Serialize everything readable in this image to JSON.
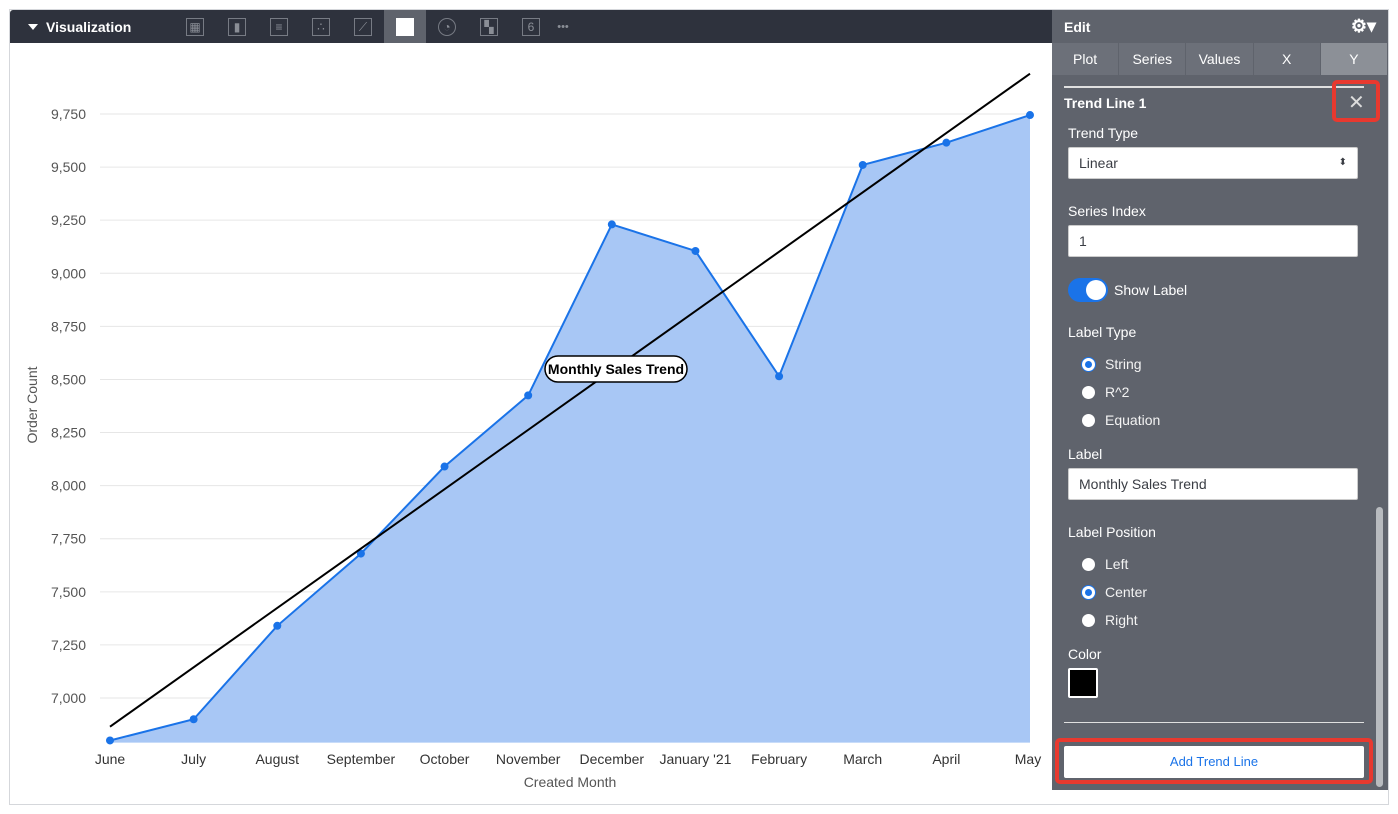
{
  "viz_bar": {
    "title": "Visualization",
    "icons": [
      "table-icon",
      "column-chart-icon",
      "bar-chart-icon",
      "scatter-icon",
      "line-chart-icon",
      "area-chart-icon",
      "pie-chart-icon",
      "map-icon",
      "single-value-icon",
      "more-icon"
    ],
    "single_value_glyph": "6",
    "more_glyph": "•••",
    "active": "area-chart-icon"
  },
  "panel": {
    "title": "Edit",
    "tabs": [
      "Plot",
      "Series",
      "Values",
      "X",
      "Y"
    ],
    "active_tab": "Y",
    "trend_title": "Trend Line 1",
    "trend_type_label": "Trend Type",
    "trend_type_value": "Linear",
    "series_index_label": "Series Index",
    "series_index_value": "1",
    "show_label": "Show Label",
    "show_label_on": true,
    "label_type_label": "Label Type",
    "label_types": [
      "String",
      "R^2",
      "Equation"
    ],
    "label_type_selected": "String",
    "label_label": "Label",
    "label_value": "Monthly Sales Trend",
    "label_position_label": "Label Position",
    "label_positions": [
      "Left",
      "Center",
      "Right"
    ],
    "label_position_selected": "Center",
    "color_label": "Color",
    "color_value": "#000000",
    "add_button": "Add Trend Line"
  },
  "chart_data": {
    "type": "area",
    "xlabel": "Created Month",
    "ylabel": "Order Count",
    "categories": [
      "June",
      "July",
      "August",
      "September",
      "October",
      "November",
      "December",
      "January '21",
      "February",
      "March",
      "April",
      "May"
    ],
    "values": [
      6800,
      6900,
      7340,
      7680,
      8090,
      8425,
      9230,
      9105,
      8515,
      9510,
      9615,
      9745
    ],
    "ylim": [
      6790,
      9950
    ],
    "yticks": [
      7000,
      7250,
      7500,
      7750,
      8000,
      8250,
      8500,
      8750,
      9000,
      9250,
      9500,
      9750
    ],
    "ytick_labels": [
      "7,000",
      "7,250",
      "7,500",
      "7,750",
      "8,000",
      "8,250",
      "8,500",
      "8,750",
      "9,000",
      "9,250",
      "9,500",
      "9,750"
    ],
    "trend_line": {
      "start": 6865,
      "end": 9940,
      "label": "Monthly Sales Trend",
      "color": "#000000"
    },
    "area_color": "#a8c7f5",
    "line_color": "#1a73e8",
    "grid": true
  }
}
